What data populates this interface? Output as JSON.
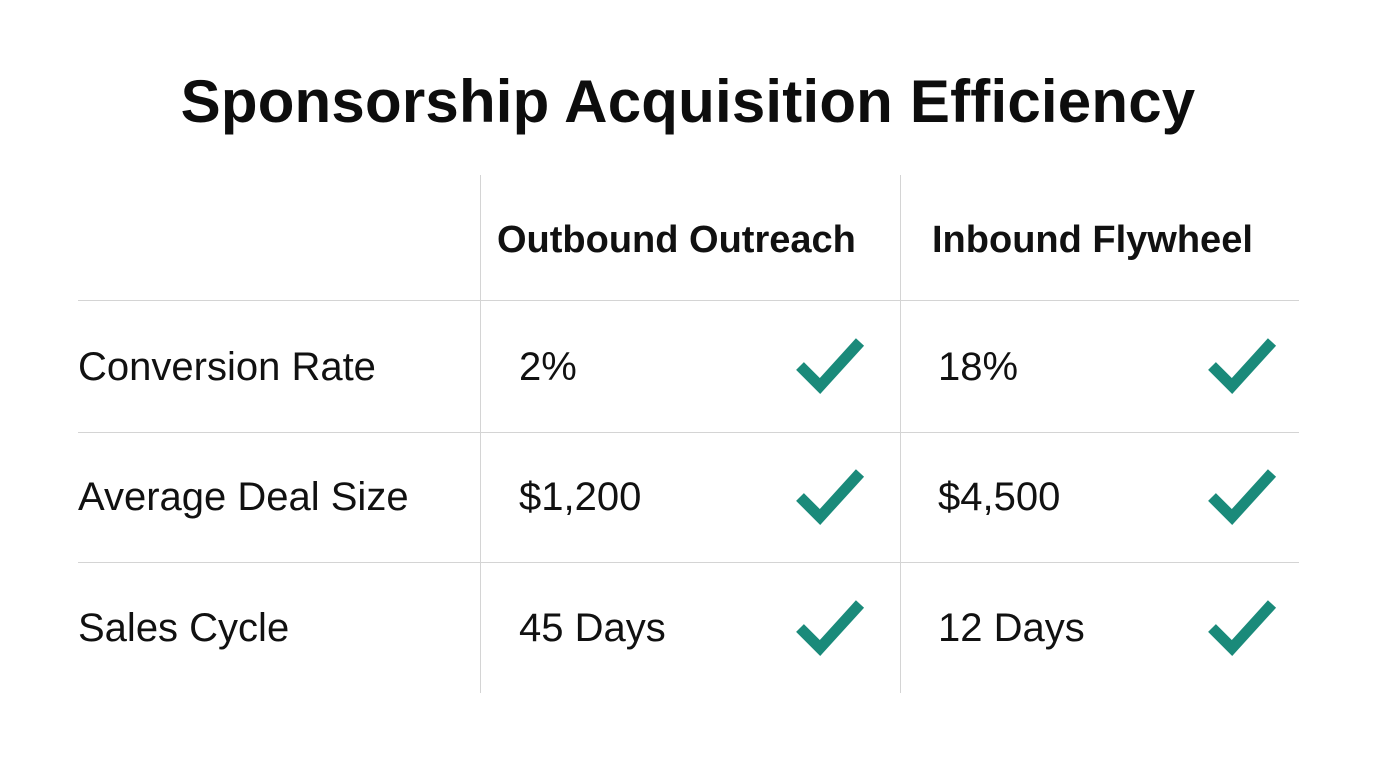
{
  "title": "Sponsorship Acquisition Efficiency",
  "columns": [
    "Outbound Outreach",
    "Inbound Flywheel"
  ],
  "rows": [
    {
      "label": "Conversion Rate",
      "values": [
        "2%",
        "18%"
      ]
    },
    {
      "label": "Average Deal Size",
      "values": [
        "$1,200",
        "$4,500"
      ]
    },
    {
      "label": "Sales Cycle",
      "values": [
        "45 Days",
        "12 Days"
      ]
    }
  ],
  "icon": "check-icon",
  "colors": {
    "check": "#1a8a7a",
    "grid": "#d4d4d4",
    "text": "#111111"
  }
}
